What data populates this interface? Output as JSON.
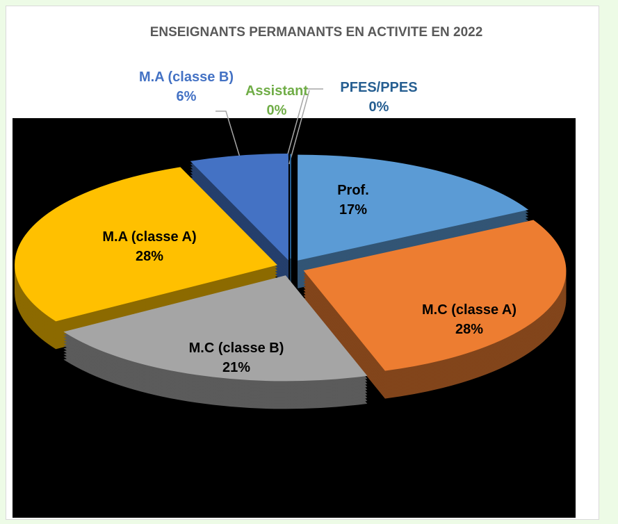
{
  "chart_data": {
    "type": "pie",
    "title": "ENSEIGNANTS PERMANANTS EN ACTIVITE EN 2022",
    "categories": [
      "Prof.",
      "M.C (classe A)",
      "M.C (classe B)",
      "M.A (classe A)",
      "M.A (classe B)",
      "Assistant",
      "PFES/PPES"
    ],
    "values": [
      17,
      28,
      21,
      28,
      6,
      0,
      0
    ],
    "value_labels": [
      "17%",
      "28%",
      "21%",
      "28%",
      "6%",
      "0%",
      "0%"
    ],
    "colors": [
      "#5b9bd5",
      "#ed7d31",
      "#a5a5a5",
      "#ffc000",
      "#4472c4",
      "#70ad47",
      "#255e91"
    ]
  }
}
